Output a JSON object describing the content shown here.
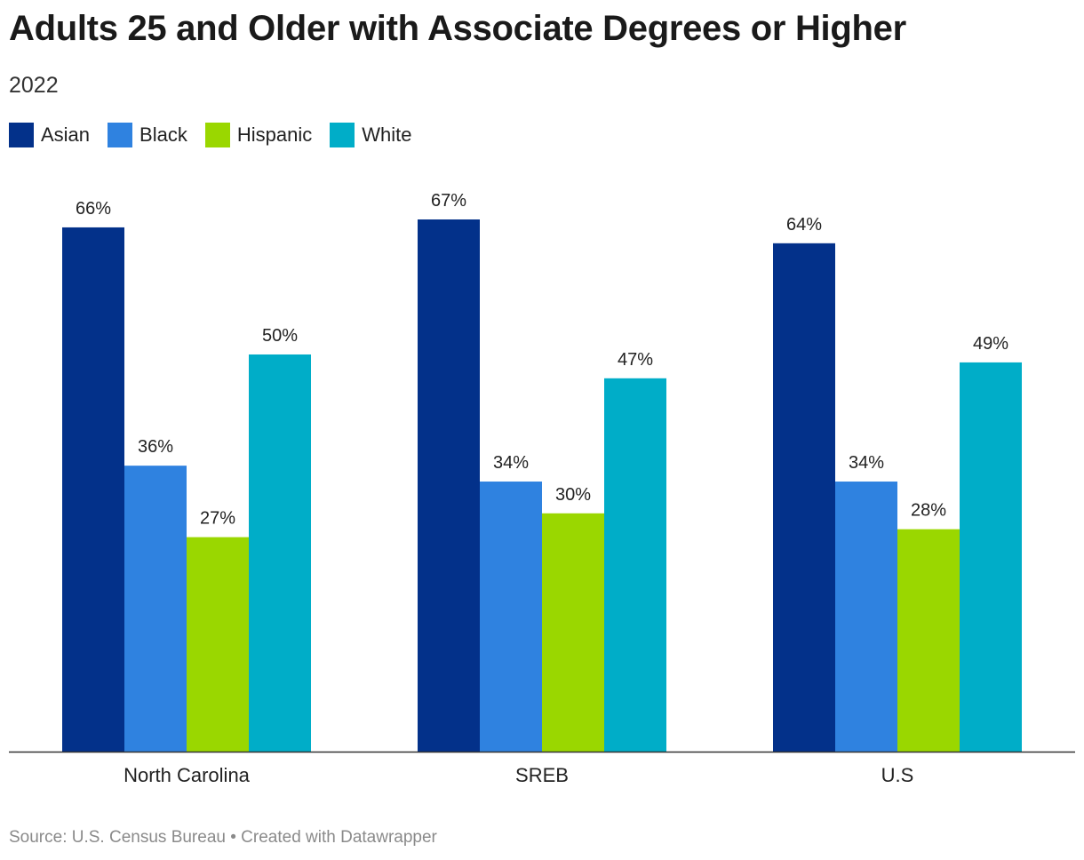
{
  "header": {
    "title": "Adults 25 and Older with Associate Degrees or Higher",
    "subtitle": "2022"
  },
  "legend": {
    "items": [
      {
        "label": "Asian",
        "color": "#03318a"
      },
      {
        "label": "Black",
        "color": "#2f82e0"
      },
      {
        "label": "Hispanic",
        "color": "#9ad700"
      },
      {
        "label": "White",
        "color": "#00adc8"
      }
    ]
  },
  "footer": {
    "source": "Source: U.S. Census Bureau • Created with Datawrapper"
  },
  "chart_data": {
    "type": "bar",
    "title": "Adults 25 and Older with Associate Degrees or Higher",
    "subtitle": "2022",
    "categories": [
      "North Carolina",
      "SREB",
      "U.S"
    ],
    "series": [
      {
        "name": "Asian",
        "color": "#03318a",
        "values": [
          66,
          67,
          64
        ],
        "labels": [
          "66%",
          "67%",
          "64%"
        ]
      },
      {
        "name": "Black",
        "color": "#2f82e0",
        "values": [
          36,
          34,
          34
        ],
        "labels": [
          "36%",
          "34%",
          "34%"
        ]
      },
      {
        "name": "Hispanic",
        "color": "#9ad700",
        "values": [
          27,
          30,
          28
        ],
        "labels": [
          "27%",
          "30%",
          "28%"
        ]
      },
      {
        "name": "White",
        "color": "#00adc8",
        "values": [
          50,
          47,
          49
        ],
        "labels": [
          "50%",
          "47%",
          "49%"
        ]
      }
    ],
    "xlabel": "",
    "ylabel": "",
    "ylim": [
      0,
      70
    ],
    "grid": false,
    "legend": "top-left"
  }
}
